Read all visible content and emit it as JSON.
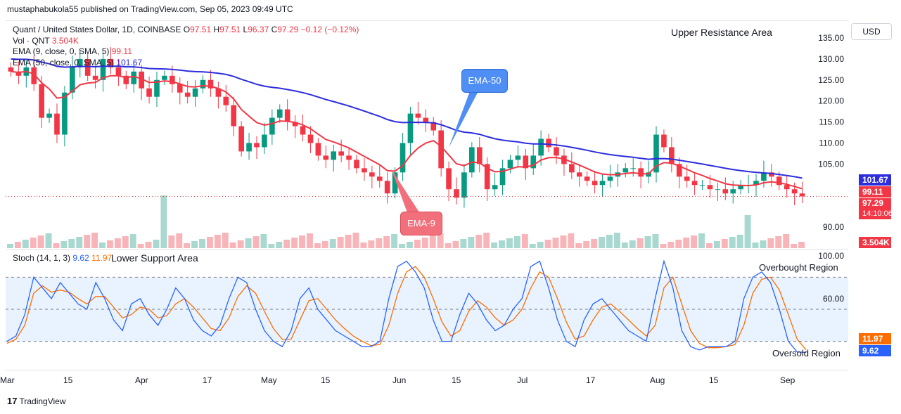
{
  "publisher": "mustaphabukola55 published on TradingView.com, Sep 05, 2023 09:49 UTC",
  "legend": {
    "symbol": "Quant / United States Dollar, 1D, COINBASE",
    "o_label": "O",
    "o": "97.51",
    "h_label": "H",
    "h": "97.51",
    "l_label": "L",
    "l": "96.37",
    "c_label": "C",
    "c": "97.29",
    "change": "−0.12 (−0.12%)",
    "vol_label": "Vol · QNT",
    "vol": "3.504K",
    "ema9_label": "EMA (9, close, 0, SMA, 5)",
    "ema9": "99.11",
    "ema50_label": "EMA (50, close, 0, SMA, 5)",
    "ema50": "101.67"
  },
  "currency": "USD",
  "annotations": {
    "upper_resistance": "Upper Resistance Area",
    "ema50": "EMA-50",
    "ema9": "EMA-9",
    "lower_support": "Lower Support Area",
    "overbought": "Overbought Region",
    "oversold": "Oversold Region"
  },
  "price_tags": {
    "ema50": "101.67",
    "ema9": "99.11",
    "close": "97.29",
    "countdown": "14:10:06",
    "volume": "3.504K"
  },
  "stoch": {
    "label": "Stoch (14, 1, 3)",
    "k": "9.62",
    "d": "11.97",
    "levels": [
      "100.00",
      "60.00"
    ]
  },
  "brand": "TradingView",
  "colors": {
    "up": "#089981",
    "down": "#f23645",
    "ema9": "#f23645",
    "ema50": "#2d2ddd",
    "stoch_k": "#2962ff",
    "stoch_d": "#ff6d00",
    "stoch_band": "#e8f3ff"
  },
  "chart_data": {
    "type": "candlestick",
    "price_ticks": [
      "135.00",
      "130.00",
      "125.00",
      "120.00",
      "115.00",
      "110.00",
      "105.00",
      "90.00"
    ],
    "x_ticks": [
      "Mar",
      "15",
      "Apr",
      "17",
      "May",
      "15",
      "Jun",
      "15",
      "Jul",
      "17",
      "Aug",
      "15",
      "Sep"
    ],
    "approx_close_series": [
      127,
      126,
      128,
      124,
      116,
      117,
      112,
      122,
      128,
      130,
      126,
      125,
      130,
      128,
      126,
      124,
      127,
      123,
      121,
      125,
      126,
      124,
      122,
      121,
      123,
      125,
      123,
      121,
      119,
      114,
      108,
      110,
      109,
      112,
      116,
      118,
      115,
      114,
      112,
      110,
      107,
      106,
      108,
      107,
      106,
      104,
      103,
      102,
      101,
      98,
      103,
      110,
      117,
      116,
      115,
      113,
      104,
      99,
      97,
      103,
      109,
      105,
      99,
      100,
      104,
      106,
      107,
      104,
      107,
      111,
      109,
      107,
      105,
      103,
      102,
      101,
      100,
      101,
      102,
      103,
      104,
      104,
      102,
      103,
      112,
      109,
      105,
      102,
      101,
      100,
      100,
      99,
      99,
      98,
      99,
      100,
      100,
      101,
      103,
      102,
      100,
      99,
      98,
      97.29
    ],
    "ema9_end": 99.11,
    "ema50_end": 101.67,
    "stoch_k_approx": [
      20,
      25,
      45,
      80,
      70,
      60,
      75,
      65,
      55,
      50,
      75,
      60,
      40,
      30,
      55,
      60,
      45,
      35,
      50,
      70,
      60,
      40,
      30,
      25,
      35,
      60,
      80,
      75,
      50,
      30,
      20,
      15,
      30,
      60,
      70,
      50,
      40,
      30,
      25,
      20,
      15,
      15,
      20,
      60,
      90,
      95,
      85,
      70,
      40,
      20,
      20,
      45,
      65,
      55,
      40,
      30,
      35,
      50,
      60,
      90,
      95,
      70,
      40,
      20,
      15,
      40,
      55,
      60,
      50,
      40,
      30,
      25,
      20,
      60,
      95,
      70,
      30,
      15,
      12,
      15,
      15,
      15,
      20,
      60,
      80,
      85,
      75,
      50,
      20,
      10,
      9.62
    ],
    "stoch_d_approx": [
      18,
      22,
      35,
      65,
      72,
      66,
      68,
      66,
      60,
      55,
      62,
      62,
      52,
      42,
      45,
      52,
      50,
      42,
      44,
      55,
      60,
      52,
      42,
      32,
      30,
      42,
      62,
      72,
      65,
      48,
      32,
      22,
      22,
      40,
      58,
      60,
      50,
      40,
      32,
      25,
      20,
      16,
      17,
      35,
      65,
      85,
      90,
      80,
      60,
      38,
      25,
      30,
      48,
      58,
      52,
      42,
      35,
      40,
      50,
      70,
      85,
      80,
      60,
      38,
      22,
      25,
      40,
      52,
      55,
      48,
      40,
      32,
      25,
      35,
      70,
      80,
      55,
      30,
      18,
      14,
      14,
      15,
      17,
      35,
      65,
      78,
      80,
      68,
      45,
      22,
      11.97
    ],
    "ylim": [
      88,
      136
    ]
  }
}
